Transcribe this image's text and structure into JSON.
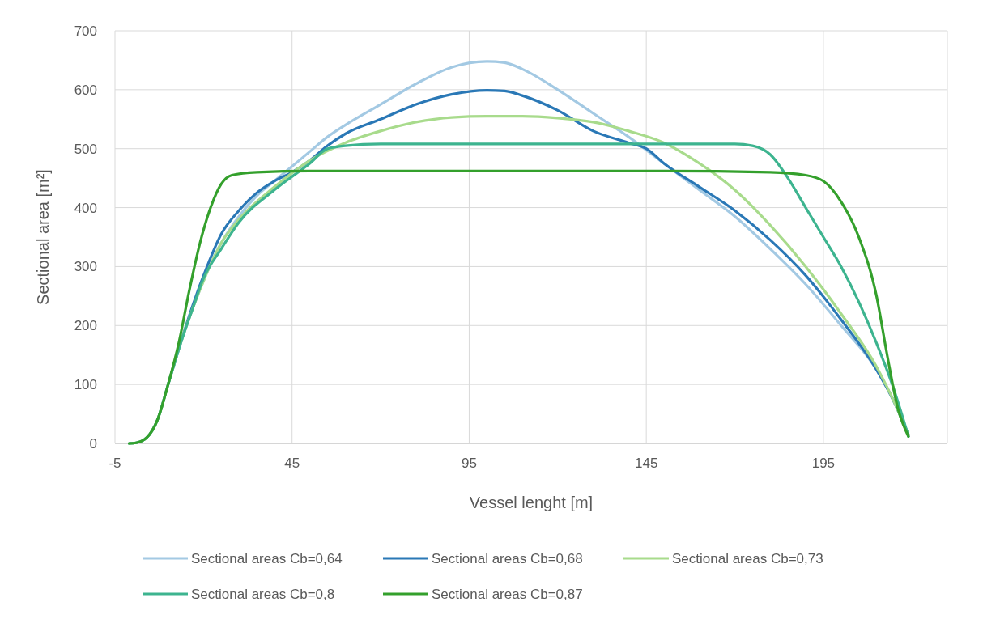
{
  "chart_data": {
    "type": "line",
    "xlabel": "Vessel lenght [m]",
    "ylabel": "Sectional area [m²]",
    "xlim": [
      -5,
      230
    ],
    "xticks": [
      -5,
      45,
      95,
      145,
      195
    ],
    "ylim": [
      0,
      700
    ],
    "yticks": [
      0,
      100,
      200,
      300,
      400,
      500,
      600,
      700
    ],
    "grid": true,
    "legend": "bottom",
    "marker": "none",
    "line_style": "solid",
    "series": [
      {
        "name": "Sectional areas Cb=0,64",
        "color": "#a3c9e3",
        "x": [
          -1,
          1,
          4,
          7,
          10,
          13,
          17,
          21,
          25,
          30,
          35,
          40,
          45,
          50,
          55,
          60,
          70,
          80,
          90,
          100,
          105,
          110,
          120,
          130,
          140,
          150,
          160,
          170,
          180,
          190,
          200,
          210,
          215,
          219
        ],
        "values": [
          0,
          1,
          10,
          40,
          100,
          160,
          230,
          290,
          340,
          385,
          420,
          445,
          470,
          495,
          520,
          540,
          575,
          610,
          638,
          648,
          646,
          635,
          600,
          560,
          520,
          475,
          430,
          385,
          330,
          270,
          200,
          125,
          70,
          12
        ]
      },
      {
        "name": "Sectional areas Cb=0,68",
        "color": "#2a78b6",
        "x": [
          10,
          13,
          17,
          21,
          25,
          30,
          35,
          40,
          45,
          50,
          55,
          60,
          70,
          80,
          90,
          100,
          105,
          110,
          120,
          130,
          140,
          145,
          150,
          160,
          170,
          180,
          190,
          200,
          210,
          215,
          219
        ],
        "values": [
          100,
          160,
          235,
          300,
          355,
          395,
          425,
          445,
          460,
          480,
          505,
          525,
          550,
          575,
          592,
          599,
          598,
          590,
          565,
          530,
          510,
          500,
          475,
          435,
          395,
          345,
          285,
          210,
          125,
          70,
          15
        ]
      },
      {
        "name": "Sectional areas Cb=0,73",
        "color": "#a8db8c",
        "x": [
          -1,
          1,
          4,
          7,
          10,
          13,
          17,
          21,
          25,
          30,
          40,
          50,
          60,
          70,
          80,
          90,
          100,
          110,
          120,
          130,
          140,
          150,
          160,
          170,
          180,
          190,
          200,
          210,
          215,
          219
        ],
        "values": [
          0,
          1,
          10,
          40,
          100,
          160,
          230,
          290,
          340,
          380,
          435,
          480,
          510,
          530,
          545,
          553,
          555,
          555,
          552,
          545,
          530,
          510,
          475,
          430,
          370,
          300,
          220,
          130,
          70,
          15
        ]
      },
      {
        "name": "Sectional areas Cb=0,8",
        "color": "#3db48f",
        "x": [
          -1,
          1,
          4,
          7,
          10,
          13,
          17,
          20,
          25,
          30,
          40,
          50,
          55,
          60,
          70,
          100,
          140,
          170,
          175,
          180,
          185,
          190,
          195,
          200,
          205,
          210,
          215,
          219
        ],
        "values": [
          0,
          1,
          10,
          40,
          100,
          160,
          230,
          280,
          330,
          375,
          430,
          475,
          500,
          505,
          508,
          508,
          508,
          508,
          505,
          490,
          450,
          400,
          350,
          300,
          240,
          170,
          90,
          12
        ]
      },
      {
        "name": "Sectional areas Cb=0,87",
        "color": "#34a02c",
        "x": [
          -1,
          1,
          4,
          7,
          10,
          13,
          16,
          19,
          22,
          25,
          28,
          35,
          50,
          100,
          150,
          180,
          190,
          195,
          200,
          205,
          210,
          213,
          216,
          219
        ],
        "values": [
          0,
          1,
          10,
          40,
          100,
          170,
          260,
          340,
          400,
          440,
          455,
          460,
          462,
          462,
          462,
          460,
          455,
          445,
          410,
          350,
          250,
          150,
          60,
          12
        ]
      }
    ]
  }
}
